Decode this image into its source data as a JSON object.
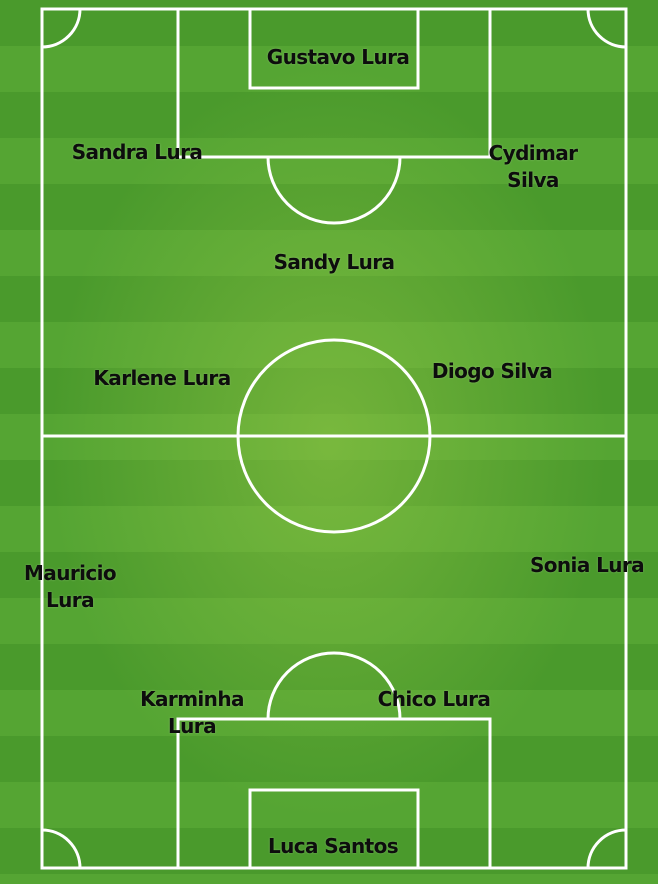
{
  "players": {
    "gustavo": "Gustavo Lura",
    "sandra": "Sandra Lura",
    "cydimar_1": "Cydimar",
    "cydimar_2": "Silva",
    "sandy": "Sandy Lura",
    "karlene": "Karlene Lura",
    "diogo": "Diogo Silva",
    "mauricio_1": "Mauricio",
    "mauricio_2": "Lura",
    "sonia": "Sonia Lura",
    "karminha_1": "Karminha",
    "karminha_2": "Lura",
    "chico": "Chico Lura",
    "luca": "Luca Santos"
  }
}
